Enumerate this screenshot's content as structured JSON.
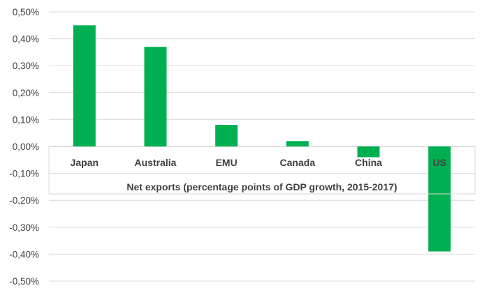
{
  "chart_data": {
    "type": "bar",
    "categories": [
      "Japan",
      "Australia",
      "EMU",
      "Canada",
      "China",
      "US"
    ],
    "values": [
      0.45,
      0.37,
      0.08,
      0.02,
      -0.04,
      -0.39
    ],
    "title": "",
    "xlabel": "Net exports (percentage points of GDP growth, 2015-2017)",
    "ylabel": "",
    "ylim": [
      -0.5,
      0.5
    ],
    "yticks": [
      0.5,
      0.4,
      0.3,
      0.2,
      0.1,
      0.0,
      -0.1,
      -0.2,
      -0.3,
      -0.4,
      -0.5
    ],
    "ytick_labels": [
      "0,50%",
      "0,40%",
      "0,30%",
      "0,20%",
      "0,10%",
      "0,00%",
      "-0,10%",
      "-0,20%",
      "-0,30%",
      "-0,40%",
      "-0,50%"
    ],
    "grid": true,
    "legend": false,
    "colors": {
      "bar": "#00b050",
      "grid": "#d9d9d9",
      "text": "#404040"
    }
  }
}
